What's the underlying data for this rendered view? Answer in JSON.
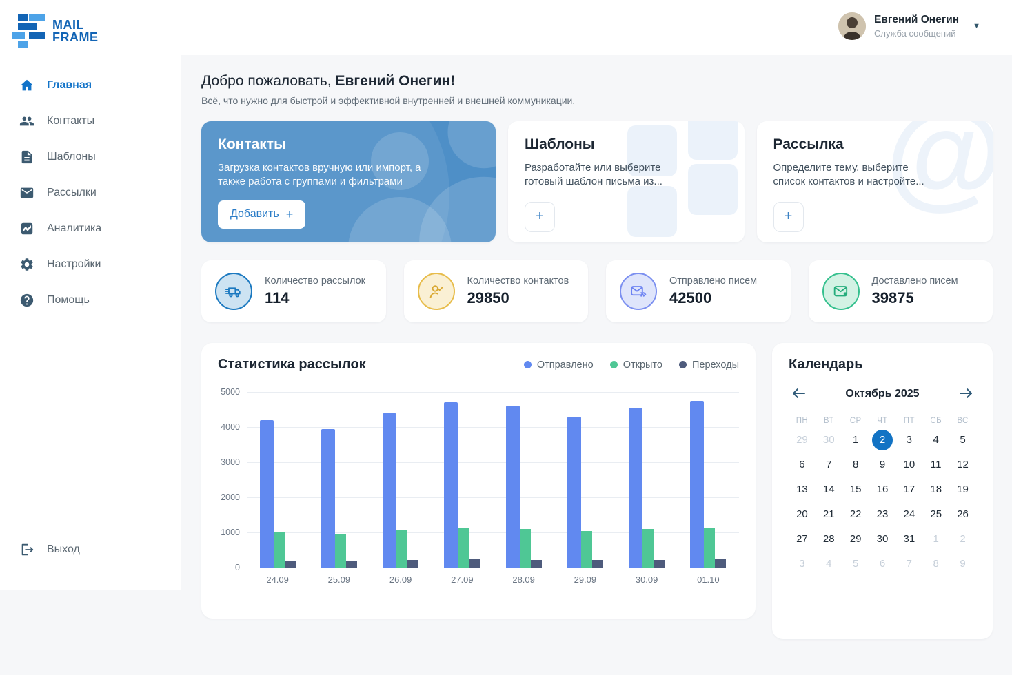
{
  "brand": {
    "line1": "MAIL",
    "line2": "FRAME"
  },
  "user": {
    "name": "Евгений Онегин",
    "role": "Служба сообщений"
  },
  "ui": {
    "plus_symbol": "+"
  },
  "sidebar": {
    "items": [
      {
        "label": "Главная",
        "icon": "home",
        "active": true
      },
      {
        "label": "Контакты",
        "icon": "contacts",
        "active": false
      },
      {
        "label": "Шаблоны",
        "icon": "templates",
        "active": false
      },
      {
        "label": "Рассылки",
        "icon": "mailings",
        "active": false
      },
      {
        "label": "Аналитика",
        "icon": "analytics",
        "active": false
      },
      {
        "label": "Настройки",
        "icon": "settings",
        "active": false
      },
      {
        "label": "Помощь",
        "icon": "help",
        "active": false
      }
    ],
    "logout_label": "Выход"
  },
  "welcome": {
    "greeting": "Добро пожаловать,",
    "name": "Евгений Онегин!",
    "subtitle": "Всё, что нужно для быстрой и эффективной внутренней и внешней коммуникации."
  },
  "feature_cards": [
    {
      "title": "Контакты",
      "description": "Загрузка контактов вручную или импорт, а также работа с группами и фильтрами",
      "button_label": "Добавить"
    },
    {
      "title": "Шаблоны",
      "description": "Разработайте или выберите готовый шаблон письма из..."
    },
    {
      "title": "Рассылка",
      "description": "Определите тему, выберите список контактов и настройте..."
    }
  ],
  "stat_cards": [
    {
      "label": "Количество рассылок",
      "value": "114",
      "icon": "truck",
      "color": "blue",
      "hex": "#1b79c0"
    },
    {
      "label": "Количество контактов",
      "value": "29850",
      "icon": "user-check",
      "color": "yellow",
      "hex": "#e7bc4a"
    },
    {
      "label": "Отправлено писем",
      "value": "42500",
      "icon": "mail-sent",
      "color": "indigo",
      "hex": "#7b8ff0"
    },
    {
      "label": "Доставлено писем",
      "value": "39875",
      "icon": "mail-delivered",
      "color": "green",
      "hex": "#35c08e"
    }
  ],
  "chart_data": {
    "type": "bar",
    "title": "Статистика рассылок",
    "categories": [
      "24.09",
      "25.09",
      "26.09",
      "27.09",
      "28.09",
      "29.09",
      "30.09",
      "01.10"
    ],
    "series": [
      {
        "name": "Отправлено",
        "color": "#6189f0",
        "values": [
          4200,
          3950,
          4400,
          4700,
          4600,
          4300,
          4550,
          4750
        ]
      },
      {
        "name": "Открыто",
        "color": "#4fc795",
        "values": [
          1000,
          950,
          1060,
          1120,
          1100,
          1030,
          1090,
          1140
        ]
      },
      {
        "name": "Переходы",
        "color": "#4e5b7c",
        "values": [
          200,
          190,
          215,
          230,
          225,
          210,
          220,
          235
        ]
      }
    ],
    "ylim": [
      0,
      5000
    ],
    "yticks": [
      0,
      1000,
      2000,
      3000,
      4000,
      5000
    ],
    "grid": true,
    "legend_position": "top-right"
  },
  "calendar": {
    "title": "Календарь",
    "month_label": "Октябрь 2025",
    "weekdays": [
      "ПН",
      "ВТ",
      "СР",
      "ЧТ",
      "ПТ",
      "СБ",
      "ВС"
    ],
    "selected_day": 2,
    "days": [
      {
        "d": 29,
        "out": true
      },
      {
        "d": 30,
        "out": true
      },
      {
        "d": 1
      },
      {
        "d": 2,
        "selected": true
      },
      {
        "d": 3
      },
      {
        "d": 4
      },
      {
        "d": 5
      },
      {
        "d": 6
      },
      {
        "d": 7
      },
      {
        "d": 8
      },
      {
        "d": 9
      },
      {
        "d": 10
      },
      {
        "d": 11
      },
      {
        "d": 12
      },
      {
        "d": 13
      },
      {
        "d": 14
      },
      {
        "d": 15
      },
      {
        "d": 16
      },
      {
        "d": 17
      },
      {
        "d": 18
      },
      {
        "d": 19
      },
      {
        "d": 20
      },
      {
        "d": 21
      },
      {
        "d": 22
      },
      {
        "d": 23
      },
      {
        "d": 24
      },
      {
        "d": 25
      },
      {
        "d": 26
      },
      {
        "d": 27
      },
      {
        "d": 28
      },
      {
        "d": 29
      },
      {
        "d": 30
      },
      {
        "d": 31
      },
      {
        "d": 1,
        "out": true
      },
      {
        "d": 2,
        "out": true
      },
      {
        "d": 3,
        "out": true
      },
      {
        "d": 4,
        "out": true
      },
      {
        "d": 5,
        "out": true
      },
      {
        "d": 6,
        "out": true
      },
      {
        "d": 7,
        "out": true
      },
      {
        "d": 8,
        "out": true
      },
      {
        "d": 9,
        "out": true
      }
    ]
  },
  "colors": {
    "primary": "#1273c4",
    "primary_card": "#4e8fc7",
    "logo": "#1264b5"
  }
}
